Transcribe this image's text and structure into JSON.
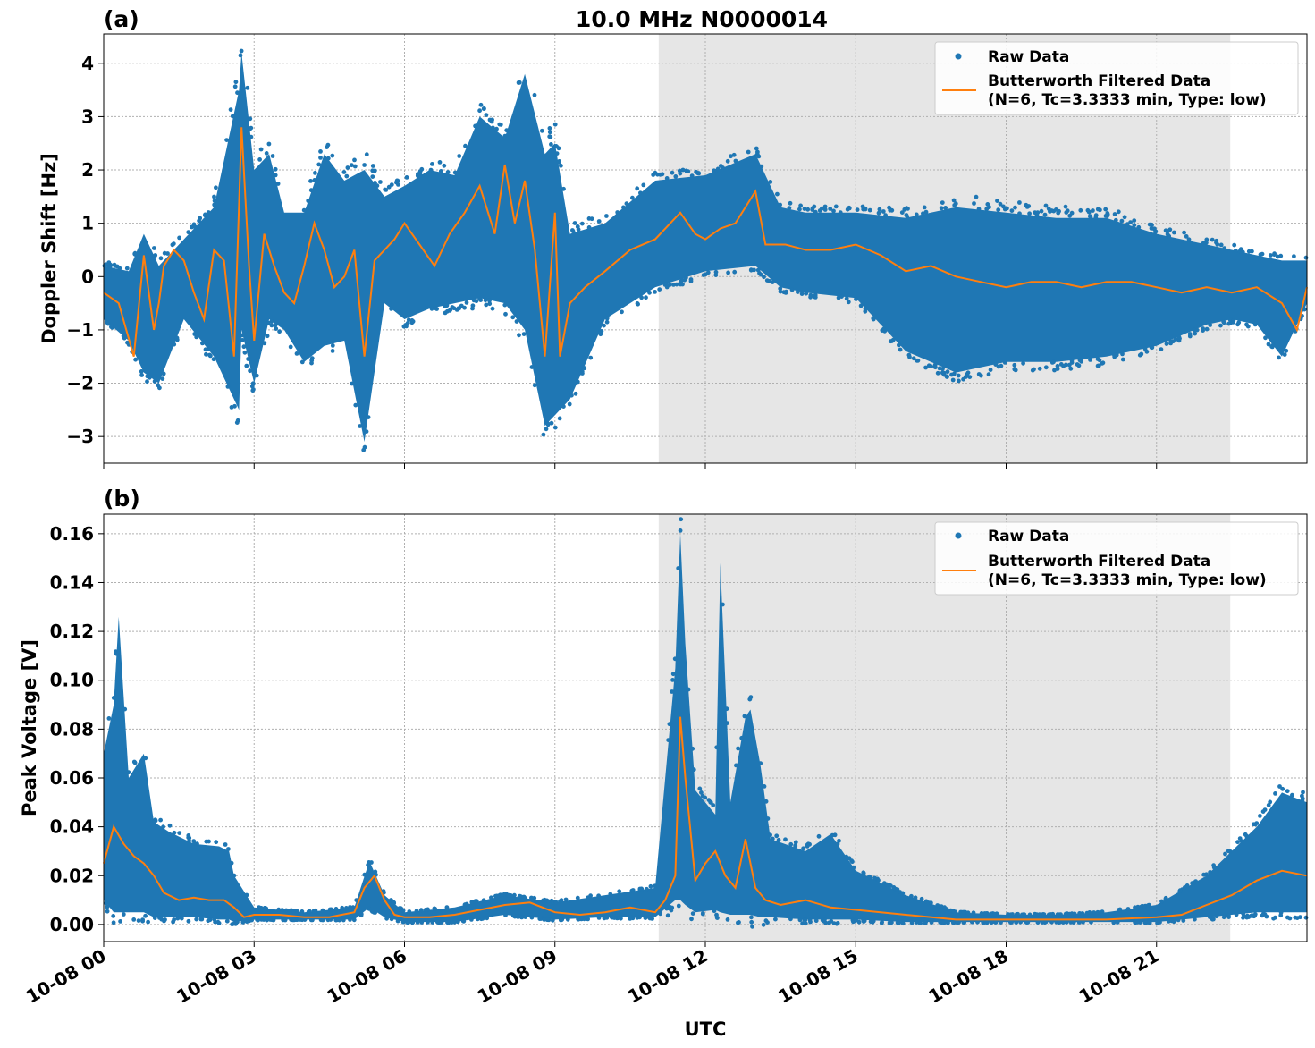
{
  "figure": {
    "title": "10.0 MHz N0000014",
    "xlabel": "UTC",
    "raw_color": "#1f77b4",
    "filtered_color": "#ff7f0e",
    "night_shade_color": "#e6e6e6"
  },
  "legend": {
    "raw_label": "Raw Data",
    "filtered_label_line1": "Butterworth Filtered Data",
    "filtered_label_line2": "(N=6, Tc=3.3333 min, Type: low)",
    "placement": "top-right"
  },
  "chart_data": [
    {
      "panel": "(a)",
      "type": "scatter+line",
      "ylabel": "Doppler Shift [Hz]",
      "xlim_hours": [
        0,
        24
      ],
      "ylim": [
        -3.5,
        4.55
      ],
      "yticks": [
        4,
        3,
        2,
        1,
        0,
        -1,
        -2,
        -3
      ],
      "ytick_labels": [
        "4",
        "3",
        "2",
        "1",
        "0",
        "−1",
        "−2",
        "−3"
      ],
      "shaded_interval_hours": [
        11.07,
        22.47
      ],
      "grid": true,
      "filtered_series": {
        "name": "Butterworth Filtered Data",
        "x_hours": [
          0.0,
          0.3,
          0.6,
          0.8,
          1.0,
          1.1,
          1.2,
          1.4,
          1.6,
          1.8,
          2.0,
          2.2,
          2.4,
          2.6,
          2.75,
          2.9,
          3.0,
          3.2,
          3.4,
          3.6,
          3.8,
          4.0,
          4.2,
          4.4,
          4.6,
          4.8,
          5.0,
          5.2,
          5.4,
          5.6,
          5.8,
          6.0,
          6.3,
          6.6,
          6.9,
          7.2,
          7.5,
          7.8,
          8.0,
          8.2,
          8.4,
          8.6,
          8.8,
          9.0,
          9.1,
          9.3,
          9.6,
          10.0,
          10.5,
          11.0,
          11.5,
          11.8,
          12.0,
          12.3,
          12.6,
          13.0,
          13.2,
          13.6,
          14.0,
          14.5,
          15.0,
          15.5,
          16.0,
          16.5,
          17.0,
          17.5,
          18.0,
          18.5,
          19.0,
          19.5,
          20.0,
          20.5,
          21.0,
          21.5,
          22.0,
          22.5,
          23.0,
          23.5,
          23.8,
          24.0
        ],
        "y": [
          -0.3,
          -0.5,
          -1.5,
          0.4,
          -1.0,
          -0.5,
          0.2,
          0.5,
          0.3,
          -0.3,
          -0.8,
          0.5,
          0.3,
          -1.5,
          2.8,
          0.2,
          -1.2,
          0.8,
          0.2,
          -0.3,
          -0.5,
          0.2,
          1.0,
          0.5,
          -0.2,
          0.0,
          0.5,
          -1.5,
          0.3,
          0.5,
          0.7,
          1.0,
          0.6,
          0.2,
          0.8,
          1.2,
          1.7,
          0.8,
          2.1,
          1.0,
          1.8,
          0.5,
          -1.5,
          1.2,
          -1.5,
          -0.5,
          -0.2,
          0.1,
          0.5,
          0.7,
          1.2,
          0.8,
          0.7,
          0.9,
          1.0,
          1.6,
          0.6,
          0.6,
          0.5,
          0.5,
          0.6,
          0.4,
          0.1,
          0.2,
          0.0,
          -0.1,
          -0.2,
          -0.1,
          -0.1,
          -0.2,
          -0.1,
          -0.1,
          -0.2,
          -0.3,
          -0.2,
          -0.3,
          -0.2,
          -0.5,
          -1.0,
          -0.2
        ]
      },
      "raw_envelope": {
        "name": "Raw Data",
        "x_hours": [
          0.0,
          0.5,
          0.8,
          1.1,
          1.6,
          2.2,
          2.7,
          2.75,
          3.0,
          3.3,
          3.6,
          4.0,
          4.4,
          4.8,
          5.2,
          5.6,
          6.0,
          6.5,
          7.0,
          7.5,
          8.0,
          8.4,
          8.8,
          9.0,
          9.3,
          10.0,
          11.0,
          12.0,
          13.0,
          13.5,
          14.0,
          15.0,
          16.0,
          17.0,
          18.0,
          19.0,
          20.0,
          21.0,
          22.0,
          22.5,
          23.0,
          23.5,
          24.0
        ],
        "upper": [
          0.2,
          0.1,
          0.8,
          0.2,
          0.7,
          1.3,
          3.5,
          4.2,
          2.0,
          2.3,
          1.2,
          1.2,
          2.3,
          1.8,
          2.0,
          1.5,
          1.7,
          2.0,
          1.9,
          3.0,
          2.6,
          3.8,
          2.3,
          2.5,
          0.8,
          1.0,
          1.8,
          1.9,
          2.3,
          1.3,
          1.2,
          1.2,
          1.1,
          1.3,
          1.2,
          1.1,
          1.1,
          0.8,
          0.6,
          0.5,
          0.4,
          0.3,
          0.3
        ],
        "lower": [
          -0.8,
          -1.2,
          -1.8,
          -2.0,
          -0.8,
          -1.5,
          -2.5,
          -1.0,
          -2.0,
          -0.8,
          -1.0,
          -1.6,
          -1.3,
          -1.2,
          -3.1,
          -0.5,
          -0.8,
          -0.6,
          -0.5,
          -0.4,
          -0.5,
          -1.0,
          -2.8,
          -2.6,
          -2.3,
          -0.8,
          -0.2,
          0.1,
          0.2,
          -0.2,
          -0.3,
          -0.4,
          -1.4,
          -1.8,
          -1.6,
          -1.6,
          -1.5,
          -1.3,
          -0.9,
          -0.8,
          -0.9,
          -1.5,
          -0.5
        ]
      }
    },
    {
      "panel": "(b)",
      "type": "scatter+line",
      "ylabel": "Peak Voltage [V]",
      "xlim_hours": [
        0,
        24
      ],
      "ylim": [
        -0.007,
        0.168
      ],
      "yticks": [
        0.16,
        0.14,
        0.12,
        0.1,
        0.08,
        0.06,
        0.04,
        0.02,
        0.0
      ],
      "ytick_labels": [
        "0.16",
        "0.14",
        "0.12",
        "0.10",
        "0.08",
        "0.06",
        "0.04",
        "0.02",
        "0.00"
      ],
      "shaded_interval_hours": [
        11.07,
        22.47
      ],
      "grid": true,
      "filtered_series": {
        "name": "Butterworth Filtered Data",
        "x_hours": [
          0.0,
          0.2,
          0.4,
          0.6,
          0.8,
          1.0,
          1.2,
          1.5,
          1.8,
          2.1,
          2.4,
          2.6,
          2.8,
          3.0,
          3.5,
          4.0,
          4.5,
          5.0,
          5.2,
          5.4,
          5.6,
          5.8,
          6.0,
          6.5,
          7.0,
          7.5,
          8.0,
          8.5,
          9.0,
          9.5,
          10.0,
          10.5,
          11.0,
          11.2,
          11.4,
          11.5,
          11.6,
          11.8,
          12.0,
          12.2,
          12.4,
          12.6,
          12.8,
          13.0,
          13.2,
          13.5,
          14.0,
          14.5,
          15.0,
          16.0,
          17.0,
          18.0,
          19.0,
          20.0,
          21.0,
          21.5,
          22.0,
          22.5,
          23.0,
          23.5,
          24.0
        ],
        "y": [
          0.025,
          0.04,
          0.033,
          0.028,
          0.025,
          0.02,
          0.013,
          0.01,
          0.011,
          0.01,
          0.01,
          0.007,
          0.003,
          0.004,
          0.004,
          0.003,
          0.003,
          0.005,
          0.015,
          0.02,
          0.01,
          0.004,
          0.003,
          0.003,
          0.004,
          0.006,
          0.008,
          0.009,
          0.005,
          0.004,
          0.005,
          0.007,
          0.005,
          0.01,
          0.02,
          0.085,
          0.06,
          0.018,
          0.025,
          0.03,
          0.02,
          0.015,
          0.035,
          0.015,
          0.01,
          0.008,
          0.01,
          0.007,
          0.006,
          0.004,
          0.002,
          0.002,
          0.002,
          0.002,
          0.003,
          0.004,
          0.008,
          0.012,
          0.018,
          0.022,
          0.02
        ]
      },
      "raw_envelope": {
        "name": "Raw Data",
        "x_hours": [
          0.0,
          0.2,
          0.3,
          0.5,
          0.8,
          1.0,
          1.3,
          1.8,
          2.3,
          2.5,
          2.6,
          3.0,
          4.0,
          5.0,
          5.3,
          5.6,
          6.0,
          7.0,
          8.0,
          9.0,
          10.0,
          11.0,
          11.4,
          11.5,
          11.6,
          11.8,
          12.2,
          12.3,
          12.5,
          12.8,
          12.9,
          13.1,
          13.3,
          14.0,
          14.5,
          15.0,
          16.0,
          17.0,
          18.0,
          19.0,
          20.0,
          21.0,
          22.0,
          22.5,
          23.0,
          23.5,
          24.0
        ],
        "upper": [
          0.07,
          0.09,
          0.126,
          0.06,
          0.07,
          0.042,
          0.038,
          0.033,
          0.032,
          0.03,
          0.02,
          0.007,
          0.005,
          0.007,
          0.026,
          0.012,
          0.005,
          0.007,
          0.012,
          0.009,
          0.012,
          0.015,
          0.105,
          0.16,
          0.115,
          0.055,
          0.045,
          0.148,
          0.05,
          0.085,
          0.088,
          0.065,
          0.035,
          0.03,
          0.037,
          0.022,
          0.012,
          0.005,
          0.004,
          0.004,
          0.005,
          0.008,
          0.02,
          0.03,
          0.04,
          0.054,
          0.05
        ],
        "lower": [
          0.01,
          0.005,
          0.005,
          0.005,
          0.005,
          0.003,
          0.003,
          0.003,
          0.002,
          0.002,
          0.001,
          0.002,
          0.002,
          0.002,
          0.007,
          0.003,
          0.001,
          0.001,
          0.004,
          0.002,
          0.003,
          0.003,
          0.01,
          0.01,
          0.008,
          0.005,
          0.006,
          0.005,
          0.004,
          0.004,
          0.004,
          0.003,
          0.003,
          0.002,
          0.002,
          0.002,
          0.001,
          0.001,
          0.001,
          0.001,
          0.001,
          0.001,
          0.003,
          0.004,
          0.005,
          0.005,
          0.005
        ]
      }
    }
  ],
  "x_ticks": {
    "hours": [
      0,
      3,
      6,
      9,
      12,
      15,
      18,
      21
    ],
    "labels": [
      "10-08 00",
      "10-08 03",
      "10-08 06",
      "10-08 09",
      "10-08 12",
      "10-08 15",
      "10-08 18",
      "10-08 21"
    ]
  }
}
